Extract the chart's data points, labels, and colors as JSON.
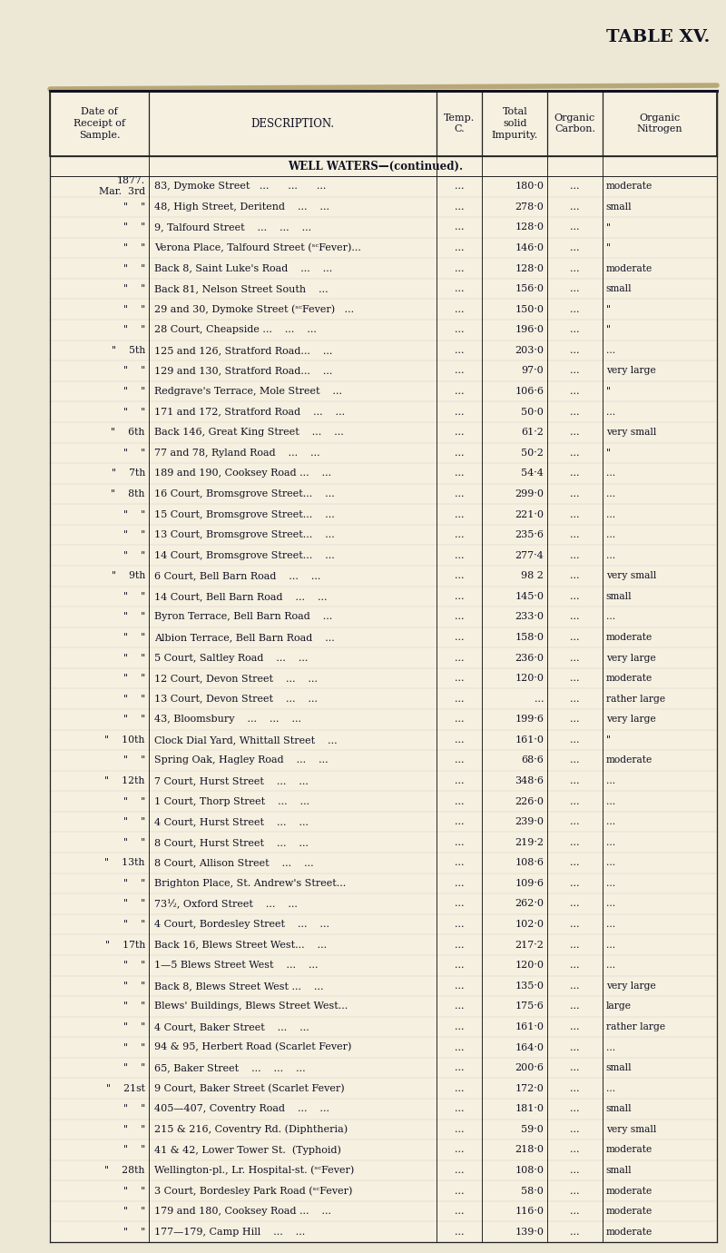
{
  "title": "TABLE XV.",
  "bg_color": "#ede8d5",
  "table_bg": "#f5f0e0",
  "header": [
    "Date of\nReceipt of\nSample.",
    "DESCRIPTION.",
    "Temp.\nC.",
    "Total\nsolid\nImpurity.",
    "Organic\nCarbon.",
    "Organic\nNitrogen"
  ],
  "section_title": "WELL WATERS—(continued).",
  "rows": [
    [
      "1877.\nMar.  3rd",
      "83, Dymoke Street   ...      ...      ...",
      "...",
      "180·0",
      "...",
      "moderate"
    ],
    [
      "\"    \"",
      "48, High Street, Deritend    ...    ...",
      "...",
      "278·0",
      "...",
      "small"
    ],
    [
      "\"    \"",
      "9, Talfourd Street    ...    ...    ...",
      "...",
      "128·0",
      "...",
      "\""
    ],
    [
      "\"    \"",
      "Verona Place, Talfourd Street (ˢᶜFever)...",
      "...",
      "146·0",
      "...",
      "\""
    ],
    [
      "\"    \"",
      "Back 8, Saint Luke's Road    ...    ...",
      "...",
      "128·0",
      "...",
      "moderate"
    ],
    [
      "\"    \"",
      "Back 81, Nelson Street South    ...",
      "...",
      "156·0",
      "...",
      "small"
    ],
    [
      "\"    \"",
      "29 and 30, Dymoke Street (ˢᶜFever)   ...",
      "...",
      "150·0",
      "...",
      "\""
    ],
    [
      "\"    \"",
      "28 Court, Cheapside ...    ...    ...",
      "...",
      "196·0",
      "...",
      "\""
    ],
    [
      "\"    5th",
      "125 and 126, Stratford Road...    ...",
      "...",
      "203·0",
      "...",
      "..."
    ],
    [
      "\"    \"",
      "129 and 130, Stratford Road...    ...",
      "...",
      "97·0",
      "...",
      "very large"
    ],
    [
      "\"    \"",
      "Redgrave's Terrace, Mole Street    ...",
      "...",
      "106·6",
      "...",
      "\""
    ],
    [
      "\"    \"",
      "171 and 172, Stratford Road    ...    ...",
      "...",
      "50·0",
      "...",
      "..."
    ],
    [
      "\"    6th",
      "Back 146, Great King Street    ...    ...",
      "...",
      "61·2",
      "...",
      "very small"
    ],
    [
      "\"    \"",
      "77 and 78, Ryland Road    ...    ...",
      "...",
      "50·2",
      "...",
      "\""
    ],
    [
      "\"    7th",
      "189 and 190, Cooksey Road ...    ...",
      "...",
      "54·4",
      "...",
      "..."
    ],
    [
      "\"    8th",
      "16 Court, Bromsgrove Street...    ...",
      "...",
      "299·0",
      "...",
      "..."
    ],
    [
      "\"    \"",
      "15 Court, Bromsgrove Street...    ...",
      "...",
      "221·0",
      "...",
      "..."
    ],
    [
      "\"    \"",
      "13 Court, Bromsgrove Street...    ...",
      "...",
      "235·6",
      "...",
      "..."
    ],
    [
      "\"    \"",
      "14 Court, Bromsgrove Street...    ...",
      "...",
      "277·4",
      "...",
      "..."
    ],
    [
      "\"    9th",
      "6 Court, Bell Barn Road    ...    ...",
      "...",
      "98 2",
      "...",
      "very small"
    ],
    [
      "\"    \"",
      "14 Court, Bell Barn Road    ...    ...",
      "...",
      "145·0",
      "...",
      "small"
    ],
    [
      "\"    \"",
      "Byron Terrace, Bell Barn Road    ...",
      "...",
      "233·0",
      "...",
      "..."
    ],
    [
      "\"    \"",
      "Albion Terrace, Bell Barn Road    ...",
      "...",
      "158·0",
      "...",
      "moderate"
    ],
    [
      "\"    \"",
      "5 Court, Saltley Road    ...    ...",
      "...",
      "236·0",
      "...",
      "very large"
    ],
    [
      "\"    \"",
      "12 Court, Devon Street    ...    ...",
      "...",
      "120·0",
      "...",
      "moderate"
    ],
    [
      "\"    \"",
      "13 Court, Devon Street    ...    ...",
      "...",
      "...",
      "...",
      "rather large"
    ],
    [
      "\"    \"",
      "43, Bloomsbury    ...    ...    ...",
      "...",
      "199·6",
      "...",
      "very large"
    ],
    [
      "\"    10th",
      "Clock Dial Yard, Whittall Street    ...",
      "...",
      "161·0",
      "...",
      "\""
    ],
    [
      "\"    \"",
      "Spring Oak, Hagley Road    ...    ...",
      "...",
      "68·6",
      "...",
      "moderate"
    ],
    [
      "\"    12th",
      "7 Court, Hurst Street    ...    ...",
      "...",
      "348·6",
      "...",
      "..."
    ],
    [
      "\"    \"",
      "1 Court, Thorp Street    ...    ...",
      "...",
      "226·0",
      "...",
      "..."
    ],
    [
      "\"    \"",
      "4 Court, Hurst Street    ...    ...",
      "...",
      "239·0",
      "...",
      "..."
    ],
    [
      "\"    \"",
      "8 Court, Hurst Street    ...    ...",
      "...",
      "219·2",
      "...",
      "..."
    ],
    [
      "\"    13th",
      "8 Court, Allison Street    ...    ...",
      "...",
      "108·6",
      "...",
      "..."
    ],
    [
      "\"    \"",
      "Brighton Place, St. Andrew's Street...",
      "...",
      "109·6",
      "...",
      "..."
    ],
    [
      "\"    \"",
      "73½, Oxford Street    ...    ...",
      "...",
      "262·0",
      "...",
      "..."
    ],
    [
      "\"    \"",
      "4 Court, Bordesley Street    ...    ...",
      "...",
      "102·0",
      "...",
      "..."
    ],
    [
      "\"    17th",
      "Back 16, Blews Street West...    ...",
      "...",
      "217·2",
      "...",
      "..."
    ],
    [
      "\"    \"",
      "1—5 Blews Street West    ...    ...",
      "...",
      "120·0",
      "...",
      "..."
    ],
    [
      "\"    \"",
      "Back 8, Blews Street West ...    ...",
      "...",
      "135·0",
      "...",
      "very large"
    ],
    [
      "\"    \"",
      "Blews' Buildings, Blews Street West...",
      "...",
      "175·6",
      "...",
      "large"
    ],
    [
      "\"    \"",
      "4 Court, Baker Street    ...    ...",
      "...",
      "161·0",
      "...",
      "rather large"
    ],
    [
      "\"    \"",
      "94 & 95, Herbert Road (Scarlet Fever)",
      "...",
      "164·0",
      "...",
      "..."
    ],
    [
      "\"    \"",
      "65, Baker Street    ...    ...    ...",
      "...",
      "200·6",
      "...",
      "small"
    ],
    [
      "\"    21st",
      "9 Court, Baker Street (Scarlet Fever)",
      "...",
      "172·0",
      "...",
      "..."
    ],
    [
      "\"    \"",
      "405—407, Coventry Road    ...    ...",
      "...",
      "181·0",
      "...",
      "small"
    ],
    [
      "\"    \"",
      "215 & 216, Coventry Rd. (Diphtheria)",
      "...",
      "59·0",
      "...",
      "very small"
    ],
    [
      "\"    \"",
      "41 & 42, Lower Tower St.  (Typhoid)",
      "...",
      "218·0",
      "...",
      "moderate"
    ],
    [
      "\"    28th",
      "Wellington-pl., Lr. Hospital-st. (ˢᶜFever)",
      "...",
      "108·0",
      "...",
      "small"
    ],
    [
      "\"    \"",
      "3 Court, Bordesley Park Road (ˢᶜFever)",
      "...",
      "58·0",
      "...",
      "moderate"
    ],
    [
      "\"    \"",
      "179 and 180, Cooksey Road ...    ...",
      "...",
      "116·0",
      "...",
      "moderate"
    ],
    [
      "\"    \"",
      "177—179, Camp Hill    ...    ...",
      "...",
      "139·0",
      "...",
      "moderate"
    ]
  ],
  "font_size": 8.0,
  "header_font_size": 8.2,
  "title_fontsize": 14
}
